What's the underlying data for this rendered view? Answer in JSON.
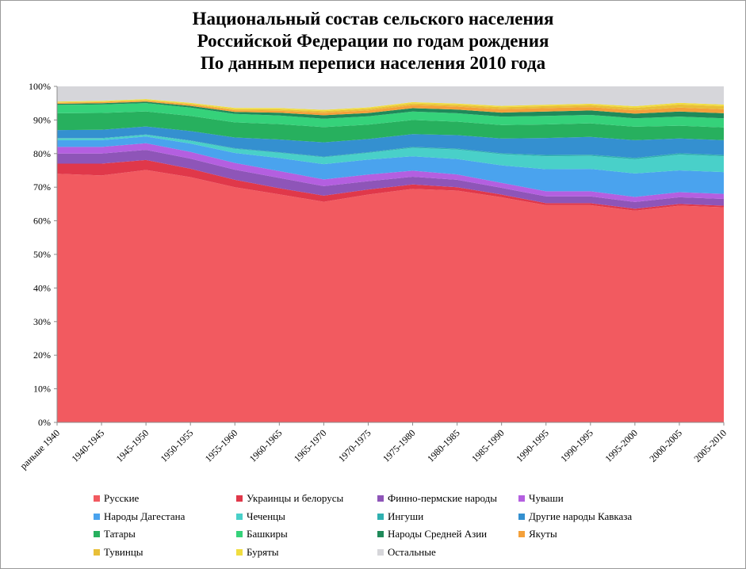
{
  "chart_data": {
    "type": "area",
    "stacked": "percent",
    "title": [
      "Национальный состав сельского населения",
      "Российской Федерации по годам рождения",
      "По данным переписи населения 2010 года"
    ],
    "xlabel": "",
    "ylabel": "",
    "ylim": [
      0,
      100
    ],
    "y_ticks": [
      "0%",
      "10%",
      "20%",
      "30%",
      "40%",
      "50%",
      "60%",
      "70%",
      "80%",
      "90%",
      "100%"
    ],
    "grid": false,
    "legend_position": "bottom",
    "categories": [
      "раньше 1940",
      "1940-1945",
      "1945-1950",
      "1950-1955",
      "1955-1960",
      "1960-1965",
      "1965-1970",
      "1970-1975",
      "1975-1980",
      "1980-1985",
      "1985-1990",
      "1990-1995",
      "1990-1995",
      "1995-2000",
      "2000-2005",
      "2005-2010"
    ],
    "series": [
      {
        "name": "Русские",
        "color": "#f25a60",
        "values": [
          74,
          73.5,
          75.5,
          73,
          70,
          66.5,
          65,
          68.5,
          69.5,
          69,
          67,
          64,
          64,
          63,
          64.5,
          64
        ]
      },
      {
        "name": "Украинцы и белорусы",
        "color": "#e0384a",
        "values": [
          3,
          3.5,
          3,
          2.5,
          2.2,
          1.8,
          1.8,
          1.5,
          1.3,
          1,
          0.8,
          0.6,
          0.6,
          0.6,
          0.5,
          0.5
        ]
      },
      {
        "name": "Финно-пермские народы",
        "color": "#8e55b8",
        "values": [
          3,
          3,
          3,
          3,
          3,
          3,
          2.8,
          2.5,
          2.3,
          2.2,
          2,
          2,
          2,
          2,
          2,
          2
        ]
      },
      {
        "name": "Чуваши",
        "color": "#b45fe0",
        "values": [
          2,
          2,
          2,
          2,
          2,
          2,
          2,
          2,
          1.8,
          1.6,
          1.5,
          1.5,
          1.5,
          1.5,
          1.5,
          1.5
        ]
      },
      {
        "name": "Народы Дагестана",
        "color": "#4aa3ee",
        "values": [
          2,
          2,
          2,
          2.5,
          3,
          3.8,
          4.5,
          4.5,
          4.3,
          4.6,
          5.2,
          6.5,
          6.6,
          7,
          6.5,
          6.5
        ]
      },
      {
        "name": "Чеченцы",
        "color": "#49d0c9",
        "values": [
          0.5,
          0.5,
          0.5,
          0.8,
          1.2,
          1.5,
          2,
          2,
          2.5,
          2.8,
          3.3,
          3.8,
          3.8,
          4.2,
          4.7,
          4.7
        ]
      },
      {
        "name": "Ингуши",
        "color": "#2fb0b0",
        "values": [
          0.1,
          0.1,
          0.1,
          0.1,
          0.2,
          0.2,
          0.2,
          0.2,
          0.3,
          0.3,
          0.3,
          0.4,
          0.4,
          0.4,
          0.4,
          0.4
        ]
      },
      {
        "name": "Другие народы Кавказа",
        "color": "#3490d0",
        "values": [
          2.4,
          2.5,
          2.4,
          2.8,
          3.2,
          3.7,
          4.2,
          4,
          3.8,
          4,
          4.4,
          5,
          5.2,
          5.3,
          4.4,
          4.4
        ]
      },
      {
        "name": "Татары",
        "color": "#27b05e",
        "values": [
          5,
          5,
          4.5,
          4.5,
          4.5,
          4.5,
          4.5,
          4.3,
          4.2,
          4,
          4,
          4,
          4,
          4,
          3.8,
          3.8
        ]
      },
      {
        "name": "Башкиры",
        "color": "#35d27a",
        "values": [
          2.5,
          2.5,
          2.5,
          2.5,
          2.5,
          2.5,
          2.5,
          2.5,
          2.5,
          2.5,
          2.5,
          2.5,
          2.5,
          2.5,
          2.7,
          2.7
        ]
      },
      {
        "name": "Народы Средней Азии",
        "color": "#1f8a5a",
        "values": [
          0.3,
          0.4,
          0.4,
          0.5,
          0.6,
          0.8,
          1,
          1,
          1,
          1.1,
          1.2,
          1.3,
          1.3,
          1.4,
          1.5,
          1.5
        ]
      },
      {
        "name": "Якуты",
        "color": "#f4a03a",
        "values": [
          0.3,
          0.3,
          0.3,
          0.4,
          0.5,
          0.6,
          0.7,
          0.8,
          0.9,
          0.9,
          1,
          1,
          1,
          1,
          1.2,
          1.2
        ]
      },
      {
        "name": "Тувинцы",
        "color": "#e8bf38",
        "values": [
          0.1,
          0.1,
          0.2,
          0.2,
          0.3,
          0.4,
          0.5,
          0.5,
          0.5,
          0.5,
          0.6,
          0.6,
          0.6,
          0.7,
          0.9,
          0.9
        ]
      },
      {
        "name": "Буряты",
        "color": "#f0dd40",
        "values": [
          0.3,
          0.3,
          0.3,
          0.3,
          0.4,
          0.4,
          0.4,
          0.4,
          0.4,
          0.4,
          0.4,
          0.4,
          0.4,
          0.5,
          0.5,
          0.5
        ]
      },
      {
        "name": "Остальные",
        "color": "#d6d6da",
        "values": [
          4.5,
          4.3,
          3.8,
          4.9,
          6.4,
          6.3,
          6.9,
          6.3,
          4.7,
          5.1,
          5.8,
          5.4,
          5.1,
          5.9,
          4.9,
          5.4
        ]
      }
    ]
  }
}
